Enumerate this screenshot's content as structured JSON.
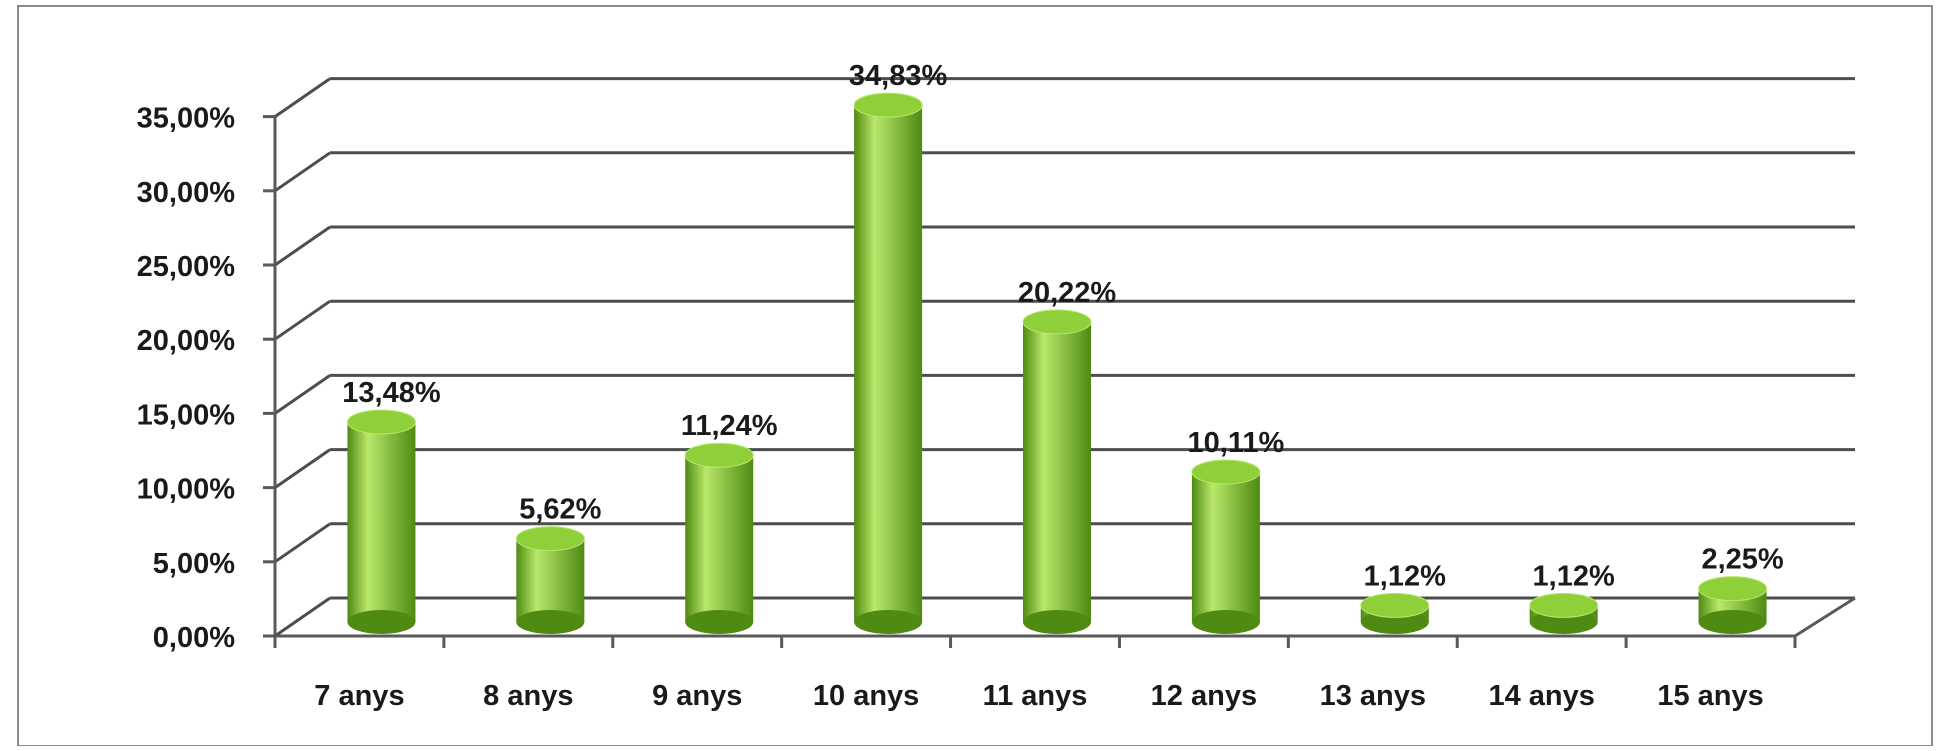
{
  "chart_data": {
    "type": "bar",
    "style": "3d-cylinder",
    "categories": [
      "7 anys",
      "8 anys",
      "9 anys",
      "10 anys",
      "11 anys",
      "12 anys",
      "13 anys",
      "14 anys",
      "15 anys"
    ],
    "values": [
      13.48,
      5.62,
      11.24,
      34.83,
      20.22,
      10.11,
      1.12,
      1.12,
      2.25
    ],
    "data_labels": [
      "13,48%",
      "5,62%",
      "11,24%",
      "34,83%",
      "20,22%",
      "10,11%",
      "1,12%",
      "1,12%",
      "2,25%"
    ],
    "y_ticks": [
      0,
      5,
      10,
      15,
      20,
      25,
      30,
      35
    ],
    "y_tick_labels": [
      "0,00%",
      "5,00%",
      "10,00%",
      "15,00%",
      "20,00%",
      "25,00%",
      "30,00%",
      "35,00%"
    ],
    "ylim": [
      0,
      35
    ],
    "grid": true,
    "legend": "none",
    "colors": {
      "bar": "#7dc22e",
      "bar_light": "#b9e86a",
      "bar_dark": "#4f8a12",
      "bar_top": "#8fd03a",
      "grid": "#4d4d4d",
      "axis": "#595959",
      "text": "#1a1a1a",
      "frame": "#8c8c8c"
    }
  }
}
